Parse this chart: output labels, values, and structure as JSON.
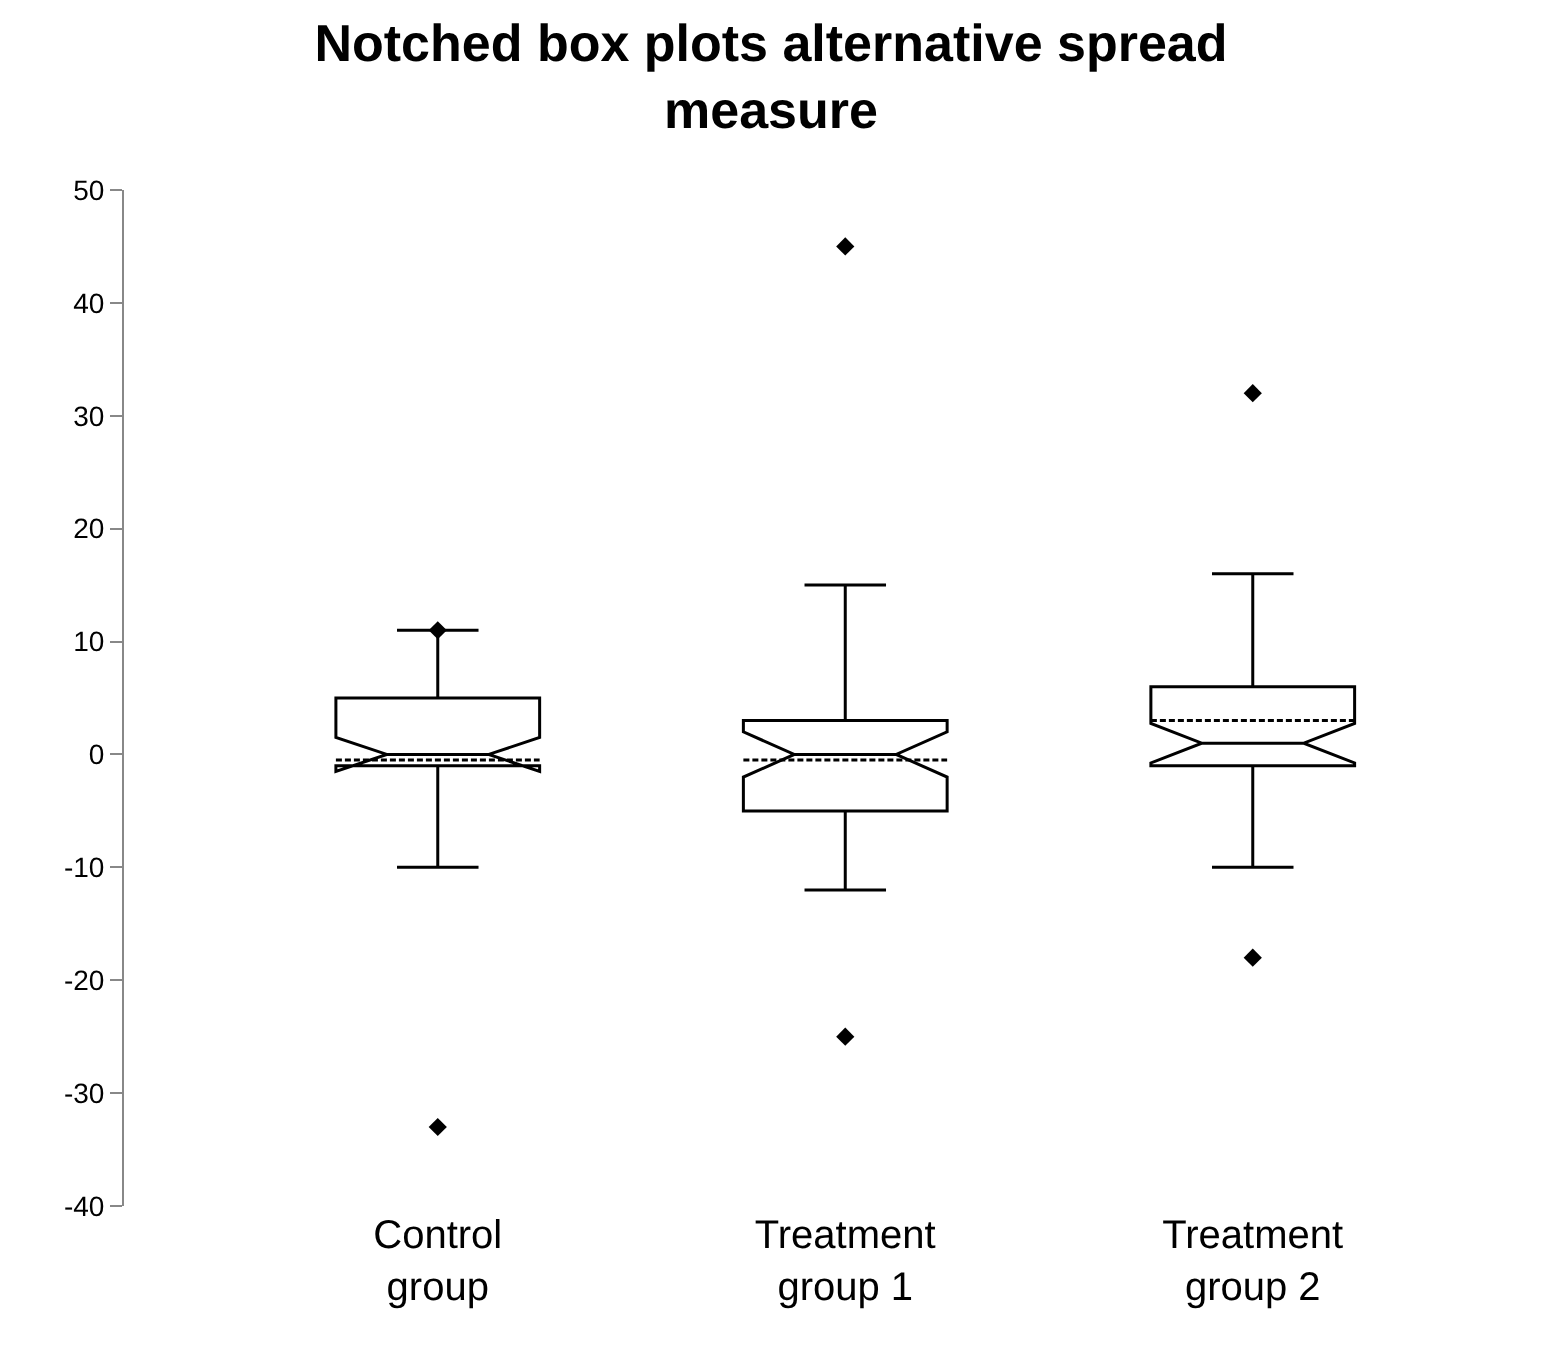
{
  "chart_data": {
    "type": "box",
    "title": "Notched box plots alternative spread measure",
    "categories": [
      "Control group",
      "Treatment group 1",
      "Treatment group 2"
    ],
    "boxes": [
      {
        "low": -10,
        "q1": -1,
        "median": 0,
        "q3": 5,
        "high": 11,
        "mean": -0.5,
        "outliers": [
          11,
          -33
        ]
      },
      {
        "low": -12,
        "q1": -5,
        "median": 0,
        "q3": 3,
        "high": 15,
        "mean": -0.5,
        "outliers": [
          45,
          -25
        ]
      },
      {
        "low": -10,
        "q1": -1,
        "median": 1,
        "q3": 6,
        "high": 16,
        "mean": 3,
        "outliers": [
          32,
          -18
        ]
      }
    ],
    "ylim": [
      -40,
      50
    ],
    "yticks": [
      -40,
      -30,
      -20,
      -10,
      0,
      10,
      20,
      30,
      40,
      50
    ],
    "marker": "diamond"
  }
}
